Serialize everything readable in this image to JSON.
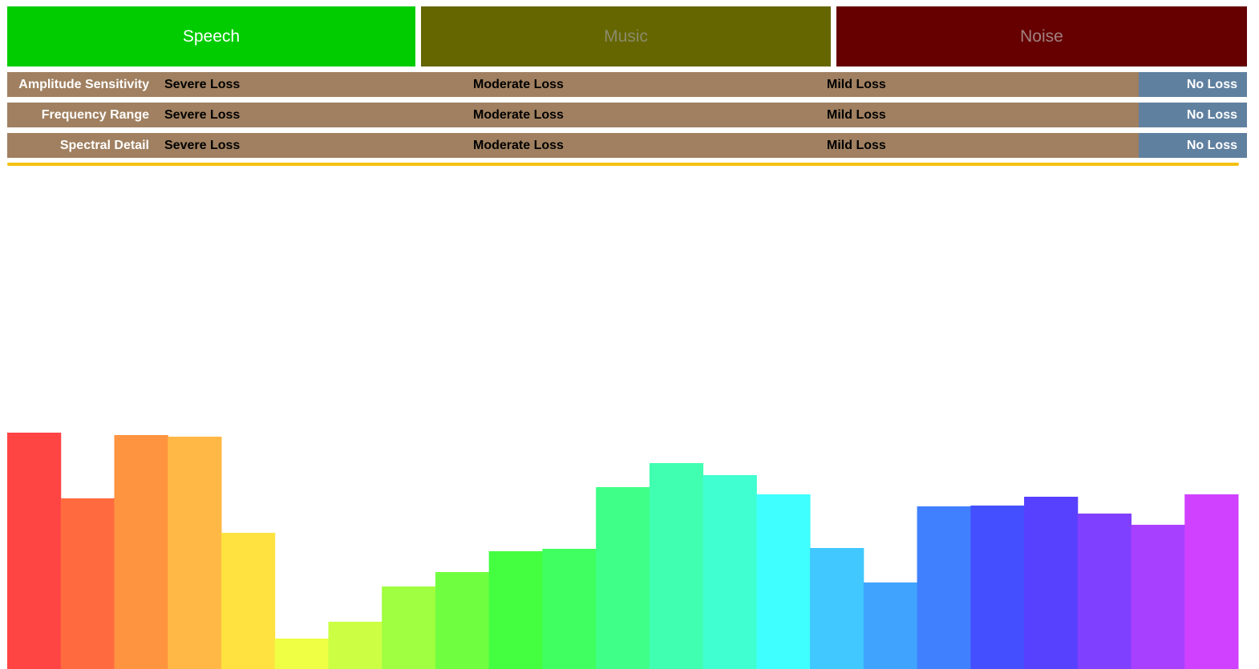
{
  "tabs": [
    "Speech",
    "Music",
    "Noise"
  ],
  "rows": [
    {
      "label": "Amplitude Sensitivity",
      "levels": [
        "Severe Loss",
        "Moderate Loss",
        "Mild Loss",
        "No Loss"
      ]
    },
    {
      "label": "Frequency Range",
      "levels": [
        "Severe Loss",
        "Moderate Loss",
        "Mild Loss",
        "No Loss"
      ]
    },
    {
      "label": "Spectral Detail",
      "levels": [
        "Severe Loss",
        "Moderate Loss",
        "Mild Loss",
        "No Loss"
      ]
    }
  ],
  "chart_data": {
    "type": "bar",
    "values": [
      295,
      213,
      292,
      290,
      170,
      38,
      59,
      103,
      121,
      147,
      150,
      227,
      257,
      242,
      218,
      151,
      108,
      203,
      204,
      215,
      194,
      180,
      218
    ],
    "colors": [
      "#ff4444",
      "#ff6a3f",
      "#ff9440",
      "#ffb845",
      "#ffe240",
      "#eeff44",
      "#ccff44",
      "#a0ff40",
      "#70ff40",
      "#44ff40",
      "#40ff60",
      "#40ff88",
      "#40ffb0",
      "#40ffd0",
      "#40ffff",
      "#40c8ff",
      "#40a4ff",
      "#4080ff",
      "#4450ff",
      "#5840ff",
      "#8040ff",
      "#a840ff",
      "#d040ff"
    ],
    "ylim": [
      0,
      630
    ]
  }
}
